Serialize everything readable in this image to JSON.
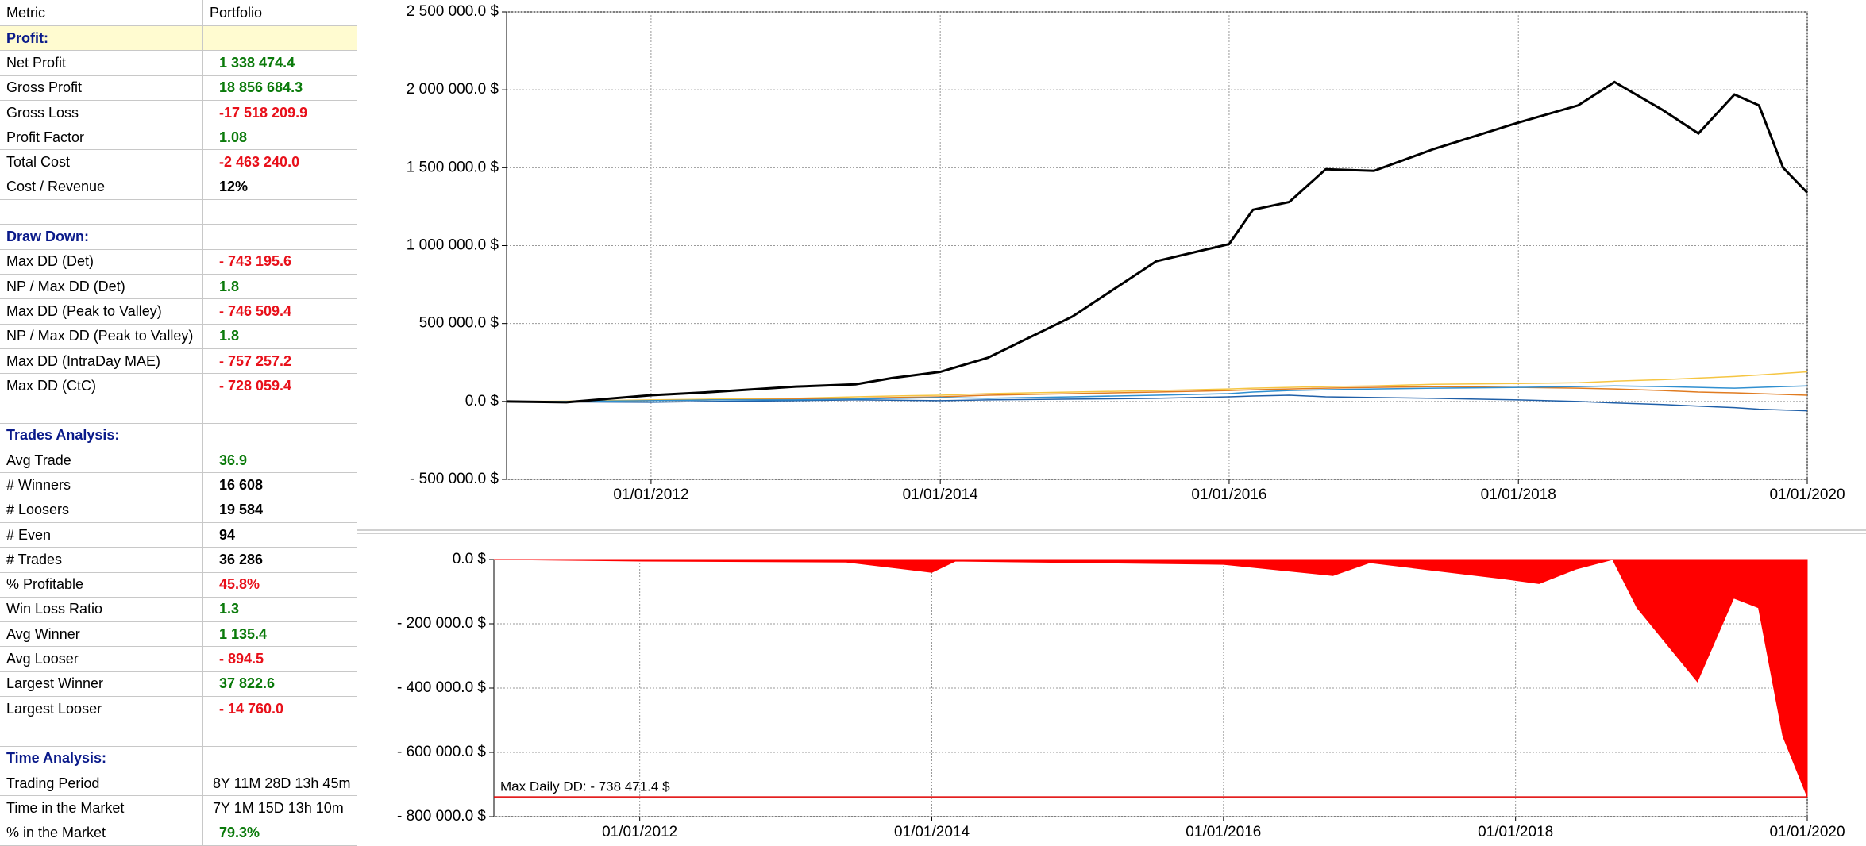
{
  "table": {
    "header": [
      "Metric",
      "Portfolio"
    ],
    "rows": [
      {
        "section": "Profit:",
        "highlight": true
      },
      {
        "metric": "Net Profit",
        "value": "1 338 474.4",
        "color": "#0a7a0a"
      },
      {
        "metric": "Gross Profit",
        "value": "18 856 684.3",
        "color": "#0a7a0a"
      },
      {
        "metric": "Gross Loss",
        "value": "-17 518 209.9",
        "color": "#e8101a"
      },
      {
        "metric": "Profit Factor",
        "value": "1.08",
        "color": "#0a7a0a"
      },
      {
        "metric": "Total Cost",
        "value": "-2 463 240.0",
        "color": "#e8101a"
      },
      {
        "metric": "Cost / Revenue",
        "value": "12%",
        "color": "#000000"
      },
      {},
      {
        "section": "Draw Down:"
      },
      {
        "metric": "Max DD (Det)",
        "value": "- 743 195.6",
        "color": "#e8101a"
      },
      {
        "metric": "NP / Max DD (Det)",
        "value": "1.8",
        "color": "#0a7a0a"
      },
      {
        "metric": "Max DD (Peak to Valley)",
        "value": "- 746 509.4",
        "color": "#e8101a"
      },
      {
        "metric": "NP / Max DD (Peak to Valley)",
        "value": "1.8",
        "color": "#0a7a0a"
      },
      {
        "metric": "Max DD (IntraDay MAE)",
        "value": "- 757 257.2",
        "color": "#e8101a"
      },
      {
        "metric": "Max DD (CtC)",
        "value": "- 728 059.4",
        "color": "#e8101a"
      },
      {},
      {
        "section": "Trades Analysis:"
      },
      {
        "metric": "Avg Trade",
        "value": "36.9",
        "color": "#0a7a0a"
      },
      {
        "metric": "# Winners",
        "value": "16 608",
        "color": "#000000"
      },
      {
        "metric": "# Loosers",
        "value": "19 584",
        "color": "#000000"
      },
      {
        "metric": "# Even",
        "value": "94",
        "color": "#000000"
      },
      {
        "metric": "# Trades",
        "value": "36 286",
        "color": "#000000"
      },
      {
        "metric": "% Profitable",
        "value": "45.8%",
        "color": "#e8101a"
      },
      {
        "metric": "Win Loss Ratio",
        "value": "1.3",
        "color": "#0a7a0a"
      },
      {
        "metric": "Avg Winner",
        "value": "1 135.4",
        "color": "#0a7a0a"
      },
      {
        "metric": "Avg Looser",
        "value": "-  894.5",
        "color": "#e8101a"
      },
      {
        "metric": "Largest Winner",
        "value": "37 822.6",
        "color": "#0a7a0a"
      },
      {
        "metric": "Largest Looser",
        "value": "- 14 760.0",
        "color": "#e8101a"
      },
      {},
      {
        "section": "Time Analysis:"
      },
      {
        "metric": "Trading Period",
        "value": "8Y 11M 28D 13h 45m",
        "color": "#000000",
        "plain": true
      },
      {
        "metric": "Time in the Market",
        "value": "7Y 1M 15D 13h 10m",
        "color": "#000000",
        "plain": true
      },
      {
        "metric": "% in the Market",
        "value": "79.3%",
        "color": "#0a7a0a"
      }
    ]
  },
  "chart_data": [
    {
      "type": "line",
      "x": [
        "2011-01-01",
        "2011-06-01",
        "2012-01-01",
        "2012-06-01",
        "2013-01-01",
        "2013-06-01",
        "2013-09-01",
        "2014-01-01",
        "2014-05-01",
        "2014-12-01",
        "2015-07-01",
        "2016-01-01",
        "2016-03-01",
        "2016-06-01",
        "2016-09-01",
        "2017-01-01",
        "2017-06-01",
        "2018-01-01",
        "2018-06-01",
        "2018-09-01",
        "2019-01-01",
        "2019-04-01",
        "2019-07-01",
        "2019-09-01",
        "2019-11-01",
        "2020-01-01"
      ],
      "series": [
        {
          "color": "#f5c542",
          "values": [
            0,
            2000,
            10000,
            15000,
            20000,
            30000,
            35000,
            40000,
            50000,
            60000,
            70000,
            80000,
            85000,
            90000,
            95000,
            100000,
            110000,
            115000,
            120000,
            130000,
            140000,
            150000,
            160000,
            170000,
            180000,
            190000
          ]
        },
        {
          "color": "#e07b20",
          "values": [
            0,
            -5000,
            5000,
            10000,
            15000,
            20000,
            25000,
            30000,
            40000,
            50000,
            60000,
            70000,
            75000,
            80000,
            85000,
            90000,
            95000,
            90000,
            85000,
            80000,
            70000,
            60000,
            55000,
            50000,
            45000,
            40000
          ]
        },
        {
          "color": "#1f5fa8",
          "values": [
            0,
            -3000,
            -5000,
            0,
            5000,
            10000,
            8000,
            5000,
            10000,
            15000,
            20000,
            30000,
            35000,
            40000,
            30000,
            25000,
            20000,
            10000,
            0,
            -10000,
            -20000,
            -30000,
            -40000,
            -50000,
            -55000,
            -60000
          ]
        },
        {
          "color": "#2f8fd0",
          "values": [
            0,
            0,
            5000,
            10000,
            10000,
            15000,
            20000,
            25000,
            20000,
            30000,
            40000,
            50000,
            60000,
            70000,
            75000,
            80000,
            85000,
            90000,
            95000,
            100000,
            95000,
            90000,
            85000,
            90000,
            95000,
            100000
          ]
        },
        {
          "color": "#000000",
          "values": [
            0,
            -5000,
            40000,
            60000,
            95000,
            110000,
            150000,
            190000,
            280000,
            545000,
            900000,
            1010000,
            1230000,
            1280000,
            1490000,
            1480000,
            1620000,
            1790000,
            1900000,
            2050000,
            1870000,
            1720000,
            1970000,
            1900000,
            1500000,
            1340000
          ]
        }
      ],
      "xlim": [
        "2011-01-01",
        "2020-01-01"
      ],
      "xticks": [
        {
          "value": "2012-01-01",
          "label": "01/01/2012"
        },
        {
          "value": "2014-01-01",
          "label": "01/01/2014"
        },
        {
          "value": "2016-01-01",
          "label": "01/01/2016"
        },
        {
          "value": "2018-01-01",
          "label": "01/01/2018"
        },
        {
          "value": "2020-01-01",
          "label": "01/01/2020"
        }
      ],
      "ylim": [
        -500000,
        2500000
      ],
      "yticks": [
        {
          "value": -500000,
          "label": "- 500 000.0 $"
        },
        {
          "value": 0,
          "label": "0.0 $"
        },
        {
          "value": 500000,
          "label": "500 000.0 $"
        },
        {
          "value": 1000000,
          "label": "1 000 000.0 $"
        },
        {
          "value": 1500000,
          "label": "1 500 000.0 $"
        },
        {
          "value": 2000000,
          "label": "2 000 000.0 $"
        },
        {
          "value": 2500000,
          "label": "2 500 000.0 $"
        }
      ],
      "grid": true
    },
    {
      "type": "area",
      "x": [
        "2011-01-01",
        "2012-01-01",
        "2013-06-01",
        "2014-01-01",
        "2014-03-01",
        "2016-01-01",
        "2016-10-01",
        "2017-01-01",
        "2017-12-01",
        "2018-03-01",
        "2018-06-01",
        "2018-09-01",
        "2018-11-01",
        "2019-04-01",
        "2019-07-01",
        "2019-09-01",
        "2019-11-01",
        "2020-01-01"
      ],
      "values": [
        0,
        -5000,
        -8000,
        -40000,
        -5000,
        -15000,
        -50000,
        -10000,
        -60000,
        -75000,
        -30000,
        0,
        -150000,
        -380000,
        -120000,
        -150000,
        -550000,
        -738000
      ],
      "color": "#ff0000",
      "xlim": [
        "2011-01-01",
        "2020-01-01"
      ],
      "xticks": [
        {
          "value": "2012-01-01",
          "label": "01/01/2012"
        },
        {
          "value": "2014-01-01",
          "label": "01/01/2014"
        },
        {
          "value": "2016-01-01",
          "label": "01/01/2016"
        },
        {
          "value": "2018-01-01",
          "label": "01/01/2018"
        },
        {
          "value": "2020-01-01",
          "label": "01/01/2020"
        }
      ],
      "ylim": [
        -800000,
        0
      ],
      "yticks": [
        {
          "value": -800000,
          "label": "- 800 000.0 $"
        },
        {
          "value": -600000,
          "label": "- 600 000.0 $"
        },
        {
          "value": -400000,
          "label": "- 400 000.0 $"
        },
        {
          "value": -200000,
          "label": "- 200 000.0 $"
        },
        {
          "value": 0,
          "label": "0.0 $"
        }
      ],
      "grid": true,
      "max_dd_line": -738471.4,
      "annotation": "Max Daily DD: - 738 471.4 $"
    }
  ]
}
